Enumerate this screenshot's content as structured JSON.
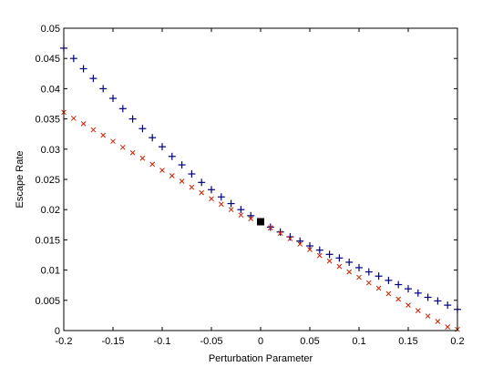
{
  "chart_data": {
    "type": "scatter",
    "title": "",
    "xlabel": "Perturbation Parameter",
    "ylabel": "Escape Rate",
    "xlim": [
      -0.2,
      0.2
    ],
    "ylim": [
      0,
      0.05
    ],
    "xticks": [
      "-0.2",
      "-0.15",
      "-0.1",
      "-0.05",
      "0",
      "0.05",
      "0.1",
      "0.15",
      "0.2"
    ],
    "yticks": [
      "0",
      "0.005",
      "0.01",
      "0.015",
      "0.02",
      "0.025",
      "0.03",
      "0.035",
      "0.04",
      "0.045",
      "0.05"
    ],
    "grid": false,
    "legend": "none",
    "series": [
      {
        "marker": "plus",
        "color": "#000080",
        "x": [
          -0.2,
          -0.19,
          -0.18,
          -0.17,
          -0.16,
          -0.15,
          -0.14,
          -0.13,
          -0.12,
          -0.11,
          -0.1,
          -0.09,
          -0.08,
          -0.07,
          -0.06,
          -0.05,
          -0.04,
          -0.03,
          -0.02,
          -0.01,
          0.01,
          0.02,
          0.03,
          0.04,
          0.05,
          0.06,
          0.07,
          0.08,
          0.09,
          0.1,
          0.11,
          0.12,
          0.13,
          0.14,
          0.15,
          0.16,
          0.17,
          0.18,
          0.19,
          0.2
        ],
        "y": [
          0.0467,
          0.045,
          0.0433,
          0.0417,
          0.04,
          0.0384,
          0.0367,
          0.035,
          0.0334,
          0.0319,
          0.0304,
          0.0288,
          0.0274,
          0.0259,
          0.0245,
          0.0233,
          0.0221,
          0.021,
          0.02,
          0.019,
          0.0171,
          0.0163,
          0.0155,
          0.0148,
          0.014,
          0.0133,
          0.0126,
          0.012,
          0.0113,
          0.0104,
          0.0097,
          0.009,
          0.0083,
          0.0076,
          0.0069,
          0.0062,
          0.0055,
          0.0049,
          0.0042,
          0.0035
        ]
      },
      {
        "marker": "x",
        "color": "#cc2200",
        "x": [
          -0.2,
          -0.19,
          -0.18,
          -0.17,
          -0.16,
          -0.15,
          -0.14,
          -0.13,
          -0.12,
          -0.11,
          -0.1,
          -0.09,
          -0.08,
          -0.07,
          -0.06,
          -0.05,
          -0.04,
          -0.03,
          -0.02,
          -0.01,
          0.01,
          0.02,
          0.03,
          0.04,
          0.05,
          0.06,
          0.07,
          0.08,
          0.09,
          0.1,
          0.11,
          0.12,
          0.13,
          0.14,
          0.15,
          0.16,
          0.17,
          0.18,
          0.19,
          0.2
        ],
        "y": [
          0.0361,
          0.0351,
          0.0342,
          0.0332,
          0.0323,
          0.0313,
          0.0303,
          0.0294,
          0.0285,
          0.0275,
          0.0265,
          0.0256,
          0.0247,
          0.0237,
          0.0228,
          0.0218,
          0.0209,
          0.02,
          0.0191,
          0.0185,
          0.017,
          0.0161,
          0.0152,
          0.0143,
          0.0134,
          0.0124,
          0.0115,
          0.0106,
          0.0097,
          0.0088,
          0.0079,
          0.007,
          0.0061,
          0.0052,
          0.0042,
          0.0033,
          0.0024,
          0.0015,
          0.0006,
          0.0002
        ]
      },
      {
        "marker": "square",
        "color": "#000000",
        "x": [
          0
        ],
        "y": [
          0.018
        ]
      }
    ]
  }
}
